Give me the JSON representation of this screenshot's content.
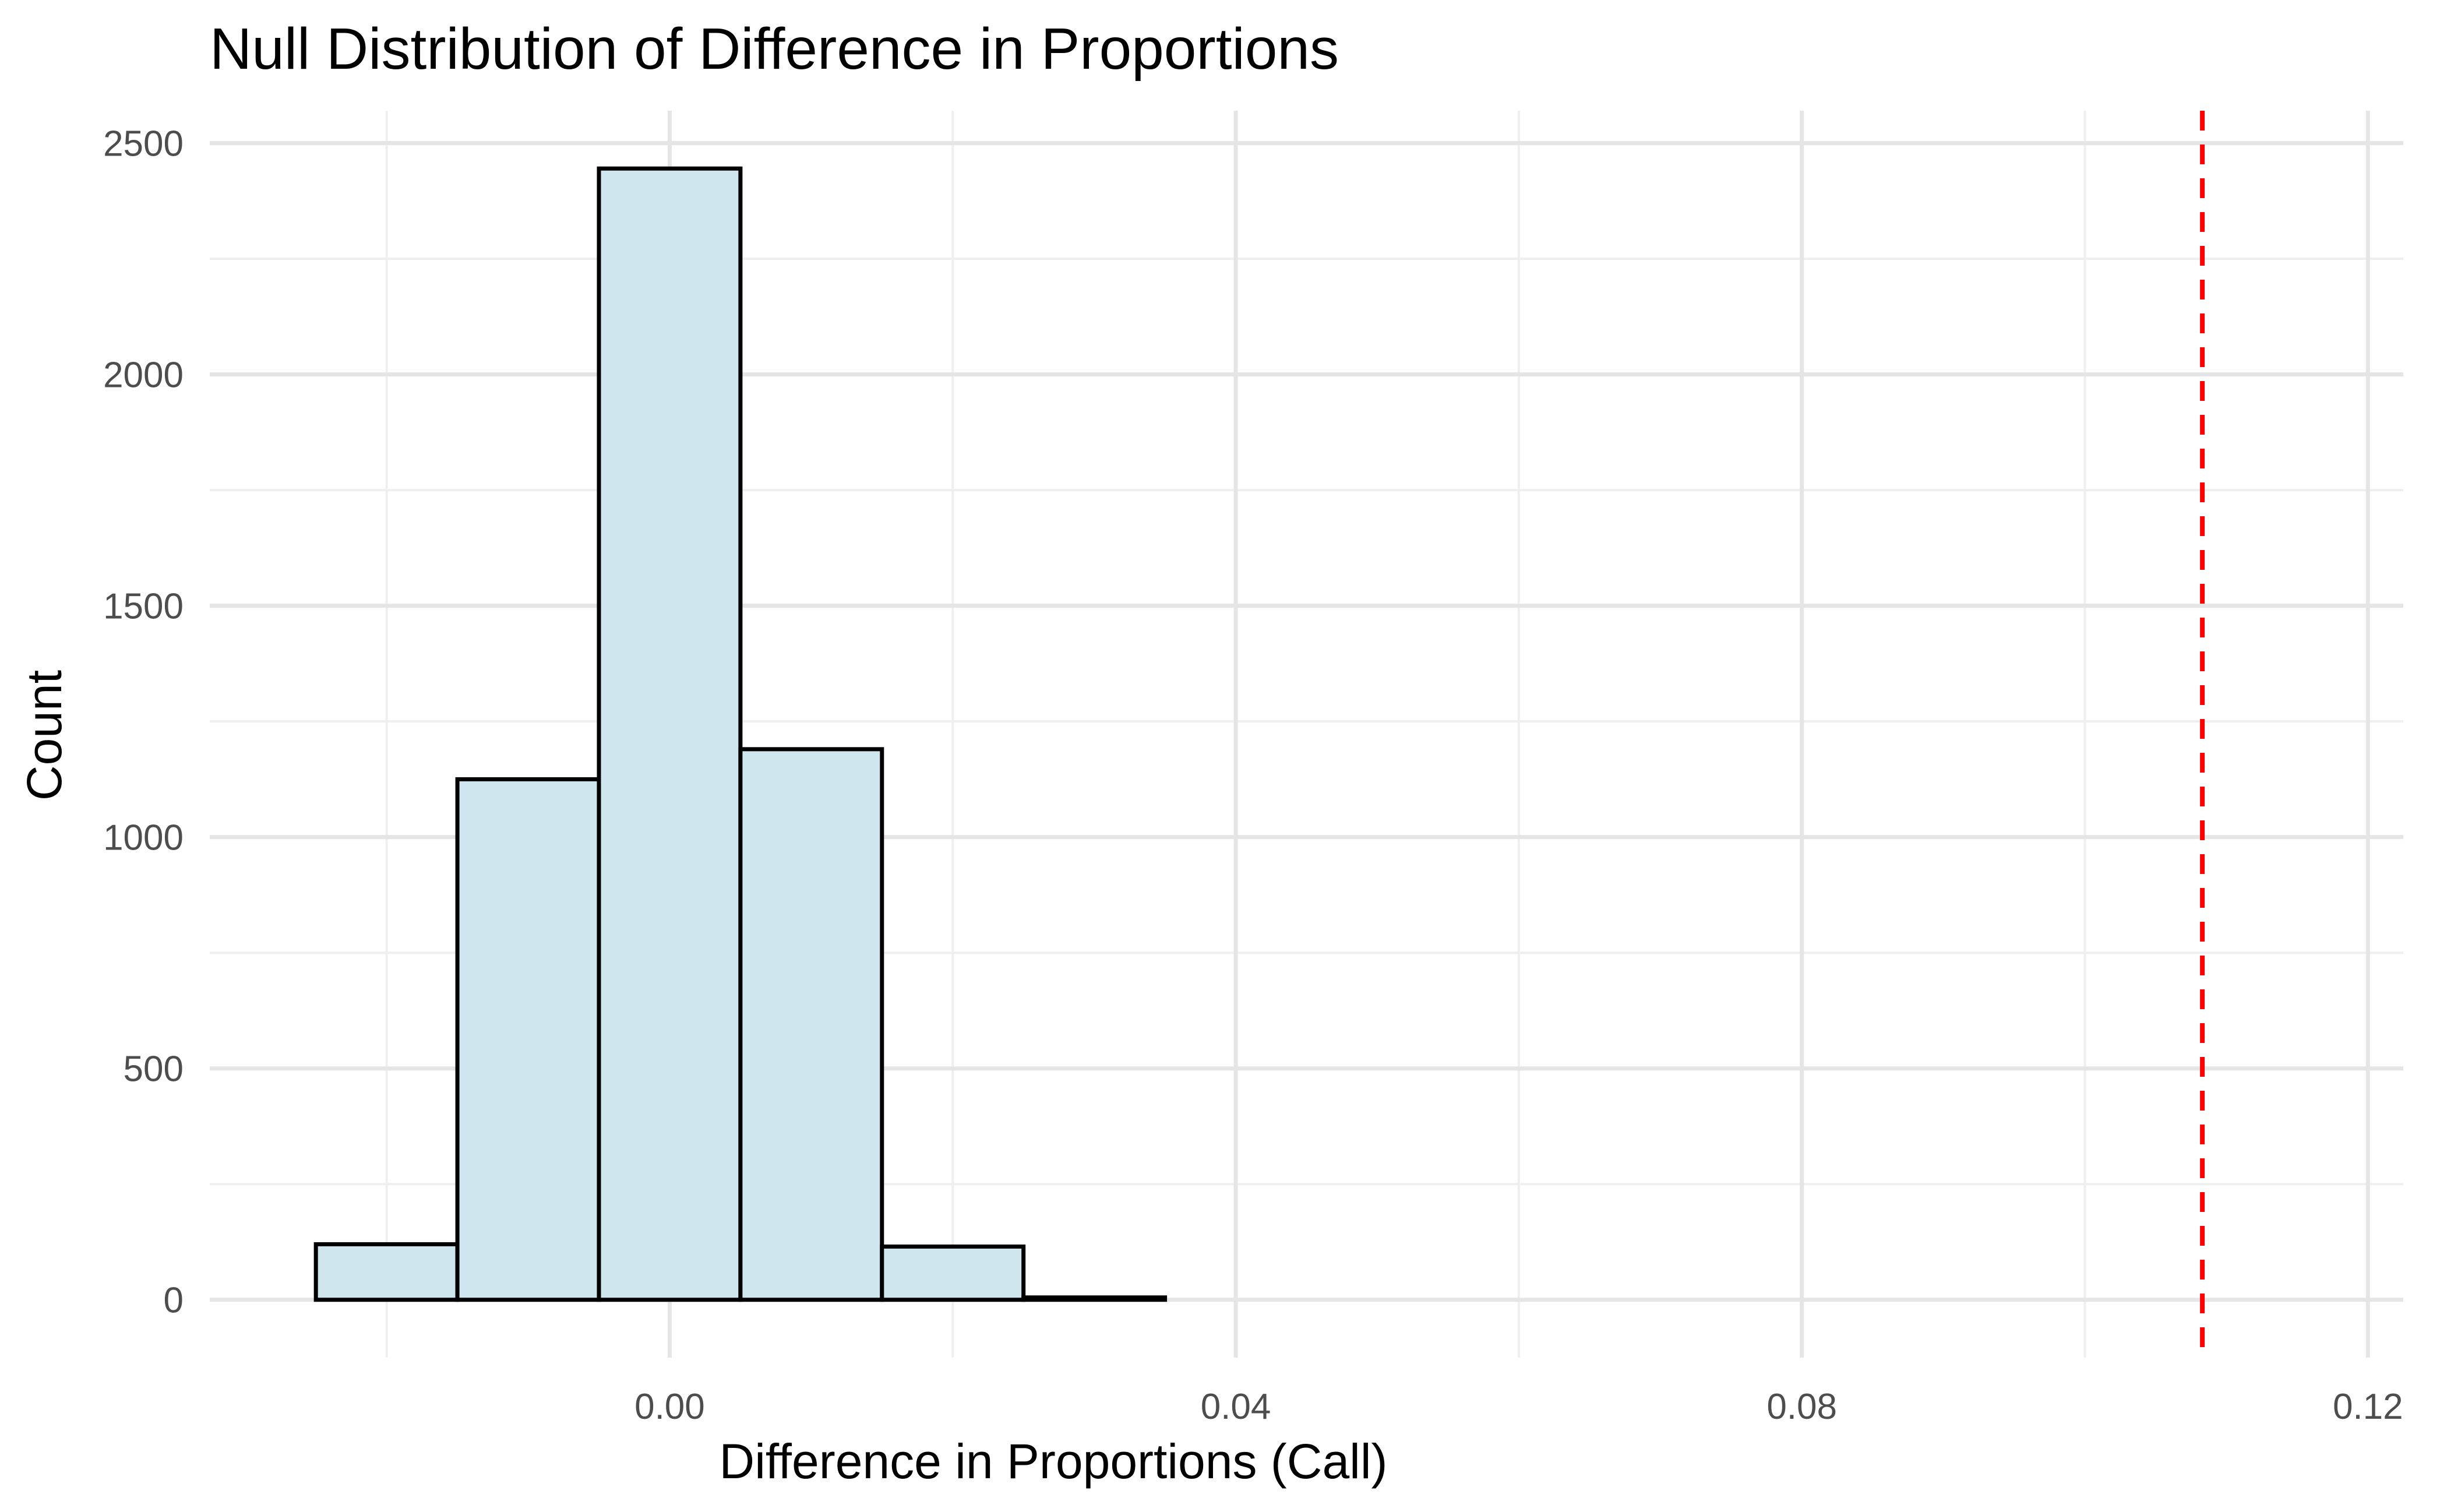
{
  "chart_data": {
    "type": "bar",
    "title": "Null Distribution of Difference in Proportions",
    "xlabel": "Difference in Proportions (Call)",
    "ylabel": "Count",
    "xlim": [
      -0.0325,
      0.1225
    ],
    "ylim": [
      -125,
      2570
    ],
    "x_ticks": [
      {
        "value": 0.0,
        "label": "0.00"
      },
      {
        "value": 0.04,
        "label": "0.04"
      },
      {
        "value": 0.08,
        "label": "0.08"
      },
      {
        "value": 0.12,
        "label": "0.12"
      }
    ],
    "x_minor_ticks": [
      -0.02,
      0.02,
      0.06,
      0.1
    ],
    "y_ticks": [
      {
        "value": 0,
        "label": "0"
      },
      {
        "value": 500,
        "label": "500"
      },
      {
        "value": 1000,
        "label": "1000"
      },
      {
        "value": 1500,
        "label": "1500"
      },
      {
        "value": 2000,
        "label": "2000"
      },
      {
        "value": 2500,
        "label": "2500"
      }
    ],
    "y_minor_ticks": [
      250,
      750,
      1250,
      1750,
      2250
    ],
    "bins": [
      {
        "x0": -0.025,
        "x1": -0.015,
        "count": 120
      },
      {
        "x0": -0.015,
        "x1": -0.005,
        "count": 1125
      },
      {
        "x0": -0.005,
        "x1": 0.005,
        "count": 2445
      },
      {
        "x0": 0.005,
        "x1": 0.015,
        "count": 1190
      },
      {
        "x0": 0.015,
        "x1": 0.025,
        "count": 115
      },
      {
        "x0": 0.025,
        "x1": 0.035,
        "count": 5
      },
      {
        "x0": 0.035,
        "x1": 0.045,
        "count": 0
      },
      {
        "x0": 0.045,
        "x1": 0.055,
        "count": 0
      },
      {
        "x0": 0.055,
        "x1": 0.065,
        "count": 0
      },
      {
        "x0": 0.065,
        "x1": 0.075,
        "count": 0
      },
      {
        "x0": 0.075,
        "x1": 0.085,
        "count": 0
      },
      {
        "x0": 0.085,
        "x1": 0.095,
        "count": 0
      },
      {
        "x0": 0.095,
        "x1": 0.105,
        "count": 0
      },
      {
        "x0": 0.105,
        "x1": 0.115,
        "count": 0
      }
    ],
    "reference_line": {
      "x": 0.1083,
      "color": "#ff0000",
      "style": "dashed"
    },
    "bar_fill": "#cfe6ee",
    "bar_outline": "#000000",
    "grid": true,
    "legend": "none"
  }
}
